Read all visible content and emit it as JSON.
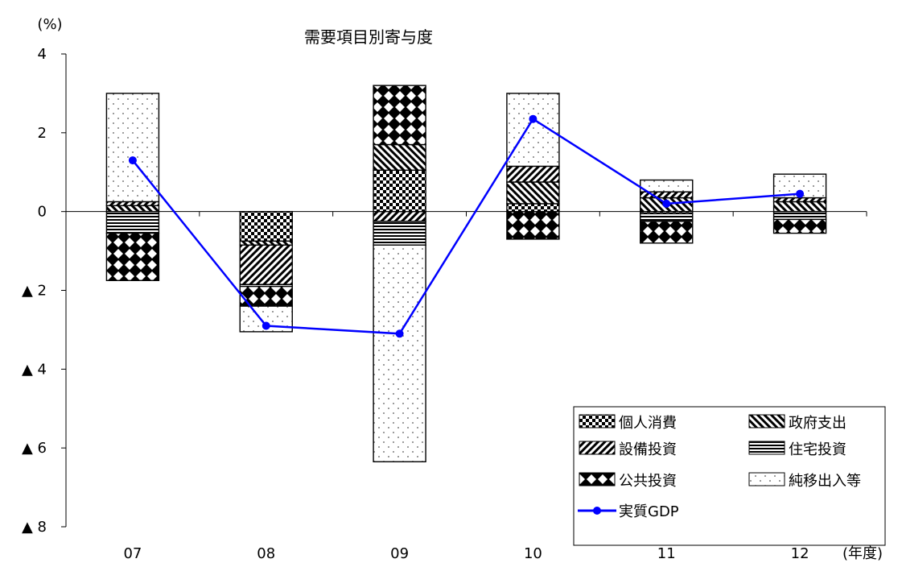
{
  "chart_data": {
    "type": "bar",
    "title": "需要項目別寄与度",
    "unit_label": "(%)",
    "x_unit_label": "(年度)",
    "categories": [
      "07",
      "08",
      "09",
      "10",
      "11",
      "12"
    ],
    "ylim": [
      -8,
      4
    ],
    "yticks": [
      {
        "value": 4,
        "label": "4"
      },
      {
        "value": 2,
        "label": "2"
      },
      {
        "value": 0,
        "label": "0"
      },
      {
        "value": -2,
        "label": "▲ 2"
      },
      {
        "value": -4,
        "label": "▲ 4"
      },
      {
        "value": -6,
        "label": "▲ 6"
      },
      {
        "value": -8,
        "label": "▲ 8"
      }
    ],
    "grid": false,
    "legend_position": "bottom-right",
    "series": [
      {
        "name": "個人消費",
        "pattern": "checker",
        "values": [
          0.0,
          -0.75,
          1.05,
          0.2,
          -0.05,
          0.0
        ]
      },
      {
        "name": "政府支出",
        "pattern": "diag-back",
        "values": [
          0.15,
          -0.1,
          0.65,
          0.55,
          0.35,
          0.25
        ]
      },
      {
        "name": "設備投資",
        "pattern": "diag-fwd",
        "values": [
          0.1,
          -1.0,
          -0.25,
          0.4,
          0.15,
          0.1
        ]
      },
      {
        "name": "住宅投資",
        "pattern": "hlines",
        "values": [
          -0.55,
          -0.05,
          -0.6,
          0.0,
          -0.2,
          -0.2
        ]
      },
      {
        "name": "公共投資",
        "pattern": "diamonds",
        "values": [
          -1.2,
          -0.5,
          1.5,
          -0.7,
          -0.55,
          -0.35
        ]
      },
      {
        "name": "純移出入等",
        "pattern": "dots",
        "values": [
          2.75,
          -0.65,
          -5.5,
          1.85,
          0.3,
          0.6
        ]
      }
    ],
    "line_series": {
      "name": "実質GDP",
      "color": "#0000ff",
      "values": [
        1.3,
        -2.9,
        -3.1,
        2.35,
        0.2,
        0.45
      ]
    }
  }
}
